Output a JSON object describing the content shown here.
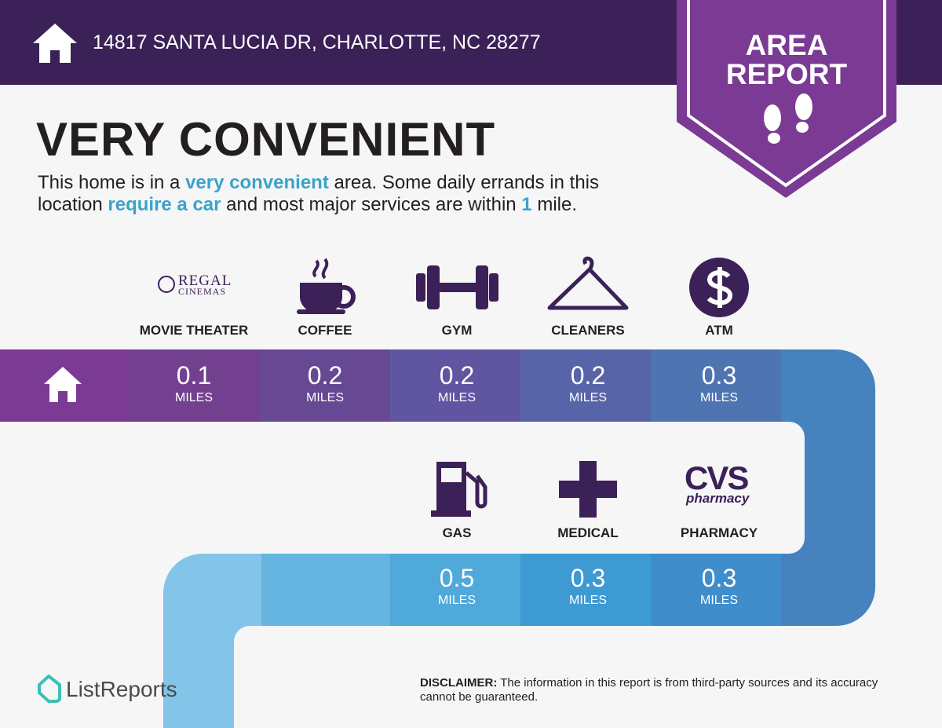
{
  "header": {
    "address": "14817 SANTA LUCIA DR, CHARLOTTE, NC 28277"
  },
  "badge": {
    "line1": "AREA",
    "line2": "REPORT"
  },
  "title": "VERY CONVENIENT",
  "description": [
    {
      "text": "This home is in a "
    },
    {
      "text": "very convenient",
      "highlight": true
    },
    {
      "text": " area. Some daily errands in this location "
    },
    {
      "text": "require a car",
      "highlight": true
    },
    {
      "text": " and most major services are within "
    },
    {
      "text": "1",
      "highlight": true
    },
    {
      "text": " mile."
    }
  ],
  "rows": [
    [
      {
        "label": "MOVIE THEATER",
        "distance": "0.1",
        "unit": "MILES",
        "logo": [
          "REGAL",
          "CINEMAS"
        ]
      },
      {
        "label": "COFFEE",
        "distance": "0.2",
        "unit": "MILES"
      },
      {
        "label": "GYM",
        "distance": "0.2",
        "unit": "MILES"
      },
      {
        "label": "CLEANERS",
        "distance": "0.2",
        "unit": "MILES"
      },
      {
        "label": "ATM",
        "distance": "0.3",
        "unit": "MILES"
      }
    ],
    [
      {
        "label": "GAS",
        "distance": "0.5",
        "unit": "MILES"
      },
      {
        "label": "MEDICAL",
        "distance": "0.3",
        "unit": "MILES"
      },
      {
        "label": "PHARMACY",
        "distance": "0.3",
        "unit": "MILES",
        "logo": [
          "CVS",
          "pharmacy"
        ]
      }
    ]
  ],
  "footer": {
    "brand": "ListReports",
    "disclaimer_label": "DISCLAIMER:",
    "disclaimer": "The information in this report is from third-party sources and its accuracy cannot be guaranteed."
  }
}
